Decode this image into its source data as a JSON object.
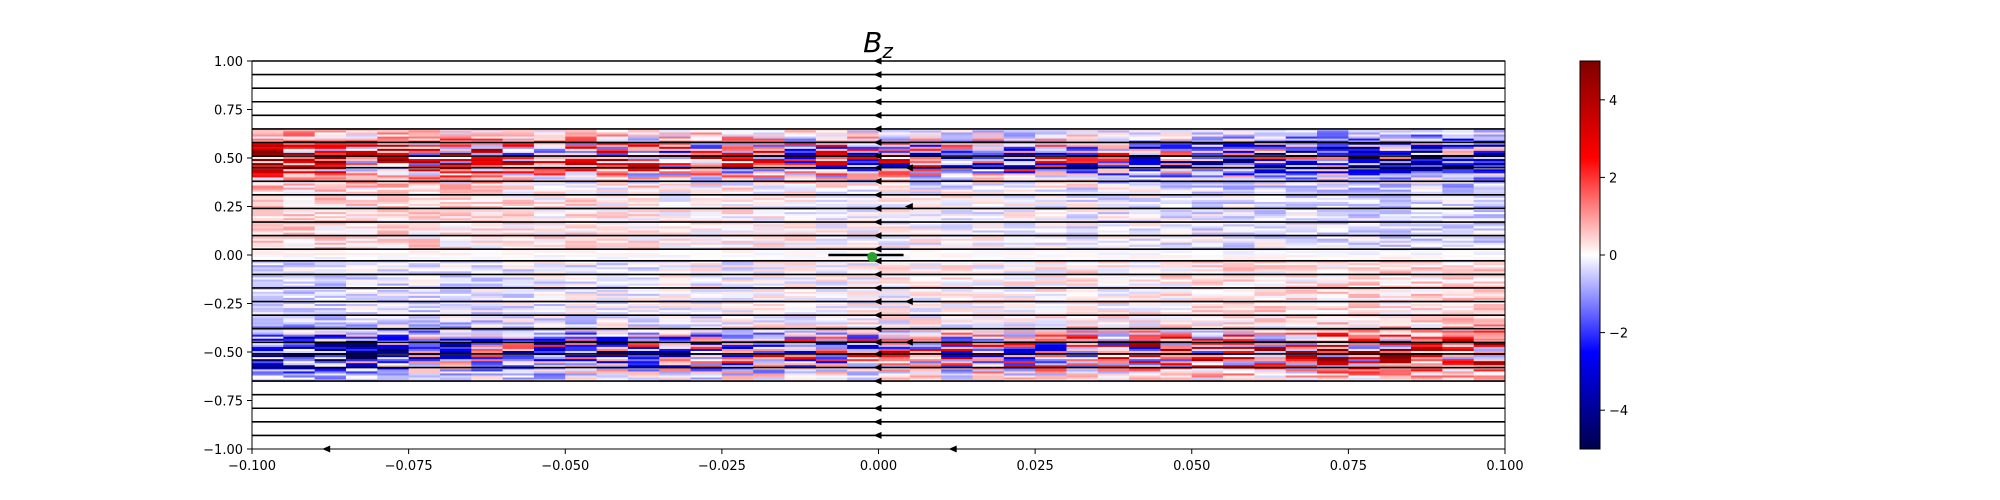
{
  "chart_data": {
    "type": "heatmap",
    "title": "B_z",
    "title_main": "B",
    "title_sub": "z",
    "xlabel": "",
    "ylabel": "",
    "xlim": [
      -0.1,
      0.1
    ],
    "ylim": [
      -1.0,
      1.0
    ],
    "x_ticks": [
      -0.1,
      -0.075,
      -0.05,
      -0.025,
      0.0,
      0.025,
      0.05,
      0.075,
      0.1
    ],
    "x_tick_labels": [
      "−0.100",
      "−0.075",
      "−0.050",
      "−0.025",
      "0.000",
      "0.025",
      "0.050",
      "0.075",
      "0.100"
    ],
    "y_ticks": [
      1.0,
      0.75,
      0.5,
      0.25,
      0.0,
      -0.25,
      -0.5,
      -0.75,
      -1.0
    ],
    "y_tick_labels": [
      "1.00",
      "0.75",
      "0.50",
      "0.25",
      "0.00",
      "−0.25",
      "−0.50",
      "−0.75",
      "−1.00"
    ],
    "colorbar": {
      "colormap": "seismic",
      "vmin": -5,
      "vmax": 5,
      "ticks": [
        4,
        2,
        0,
        -2,
        -4
      ],
      "tick_labels": [
        "4",
        "2",
        "0",
        "−2",
        "−4"
      ]
    },
    "colormap_stops": [
      {
        "value": -5,
        "color": "#00004c"
      },
      {
        "value": -2.5,
        "color": "#0000ff"
      },
      {
        "value": 0,
        "color": "#ffffff"
      },
      {
        "value": 2.5,
        "color": "#ff0000"
      },
      {
        "value": 5,
        "color": "#800000"
      }
    ],
    "field_band": {
      "y_min": -0.65,
      "y_max": 0.65,
      "peak_abs_y": 0.5
    },
    "streamlines": {
      "direction": "negative-x",
      "y_values": [
        1.0,
        0.93,
        0.86,
        0.79,
        0.72,
        0.65,
        0.58,
        0.51,
        0.45,
        0.38,
        0.31,
        0.24,
        0.17,
        0.1,
        0.03,
        -0.03,
        -0.1,
        -0.17,
        -0.24,
        -0.31,
        -0.38,
        -0.45,
        -0.51,
        -0.58,
        -0.65,
        -0.72,
        -0.79,
        -0.86,
        -0.93
      ],
      "arrow_x": 0.0,
      "extra_arrows": [
        {
          "x": 0.005,
          "y": 0.45
        },
        {
          "x": 0.005,
          "y": 0.25
        },
        {
          "x": 0.005,
          "y": -0.24
        },
        {
          "x": 0.005,
          "y": -0.45
        },
        {
          "x": -0.088,
          "y": -1.0
        },
        {
          "x": 0.012,
          "y": -1.0
        }
      ],
      "short_segment": {
        "x_from": -0.008,
        "x_to": 0.004,
        "y": 0.0
      }
    },
    "marker": {
      "x": -0.001,
      "y": -0.01,
      "color": "#2ca02c"
    }
  }
}
